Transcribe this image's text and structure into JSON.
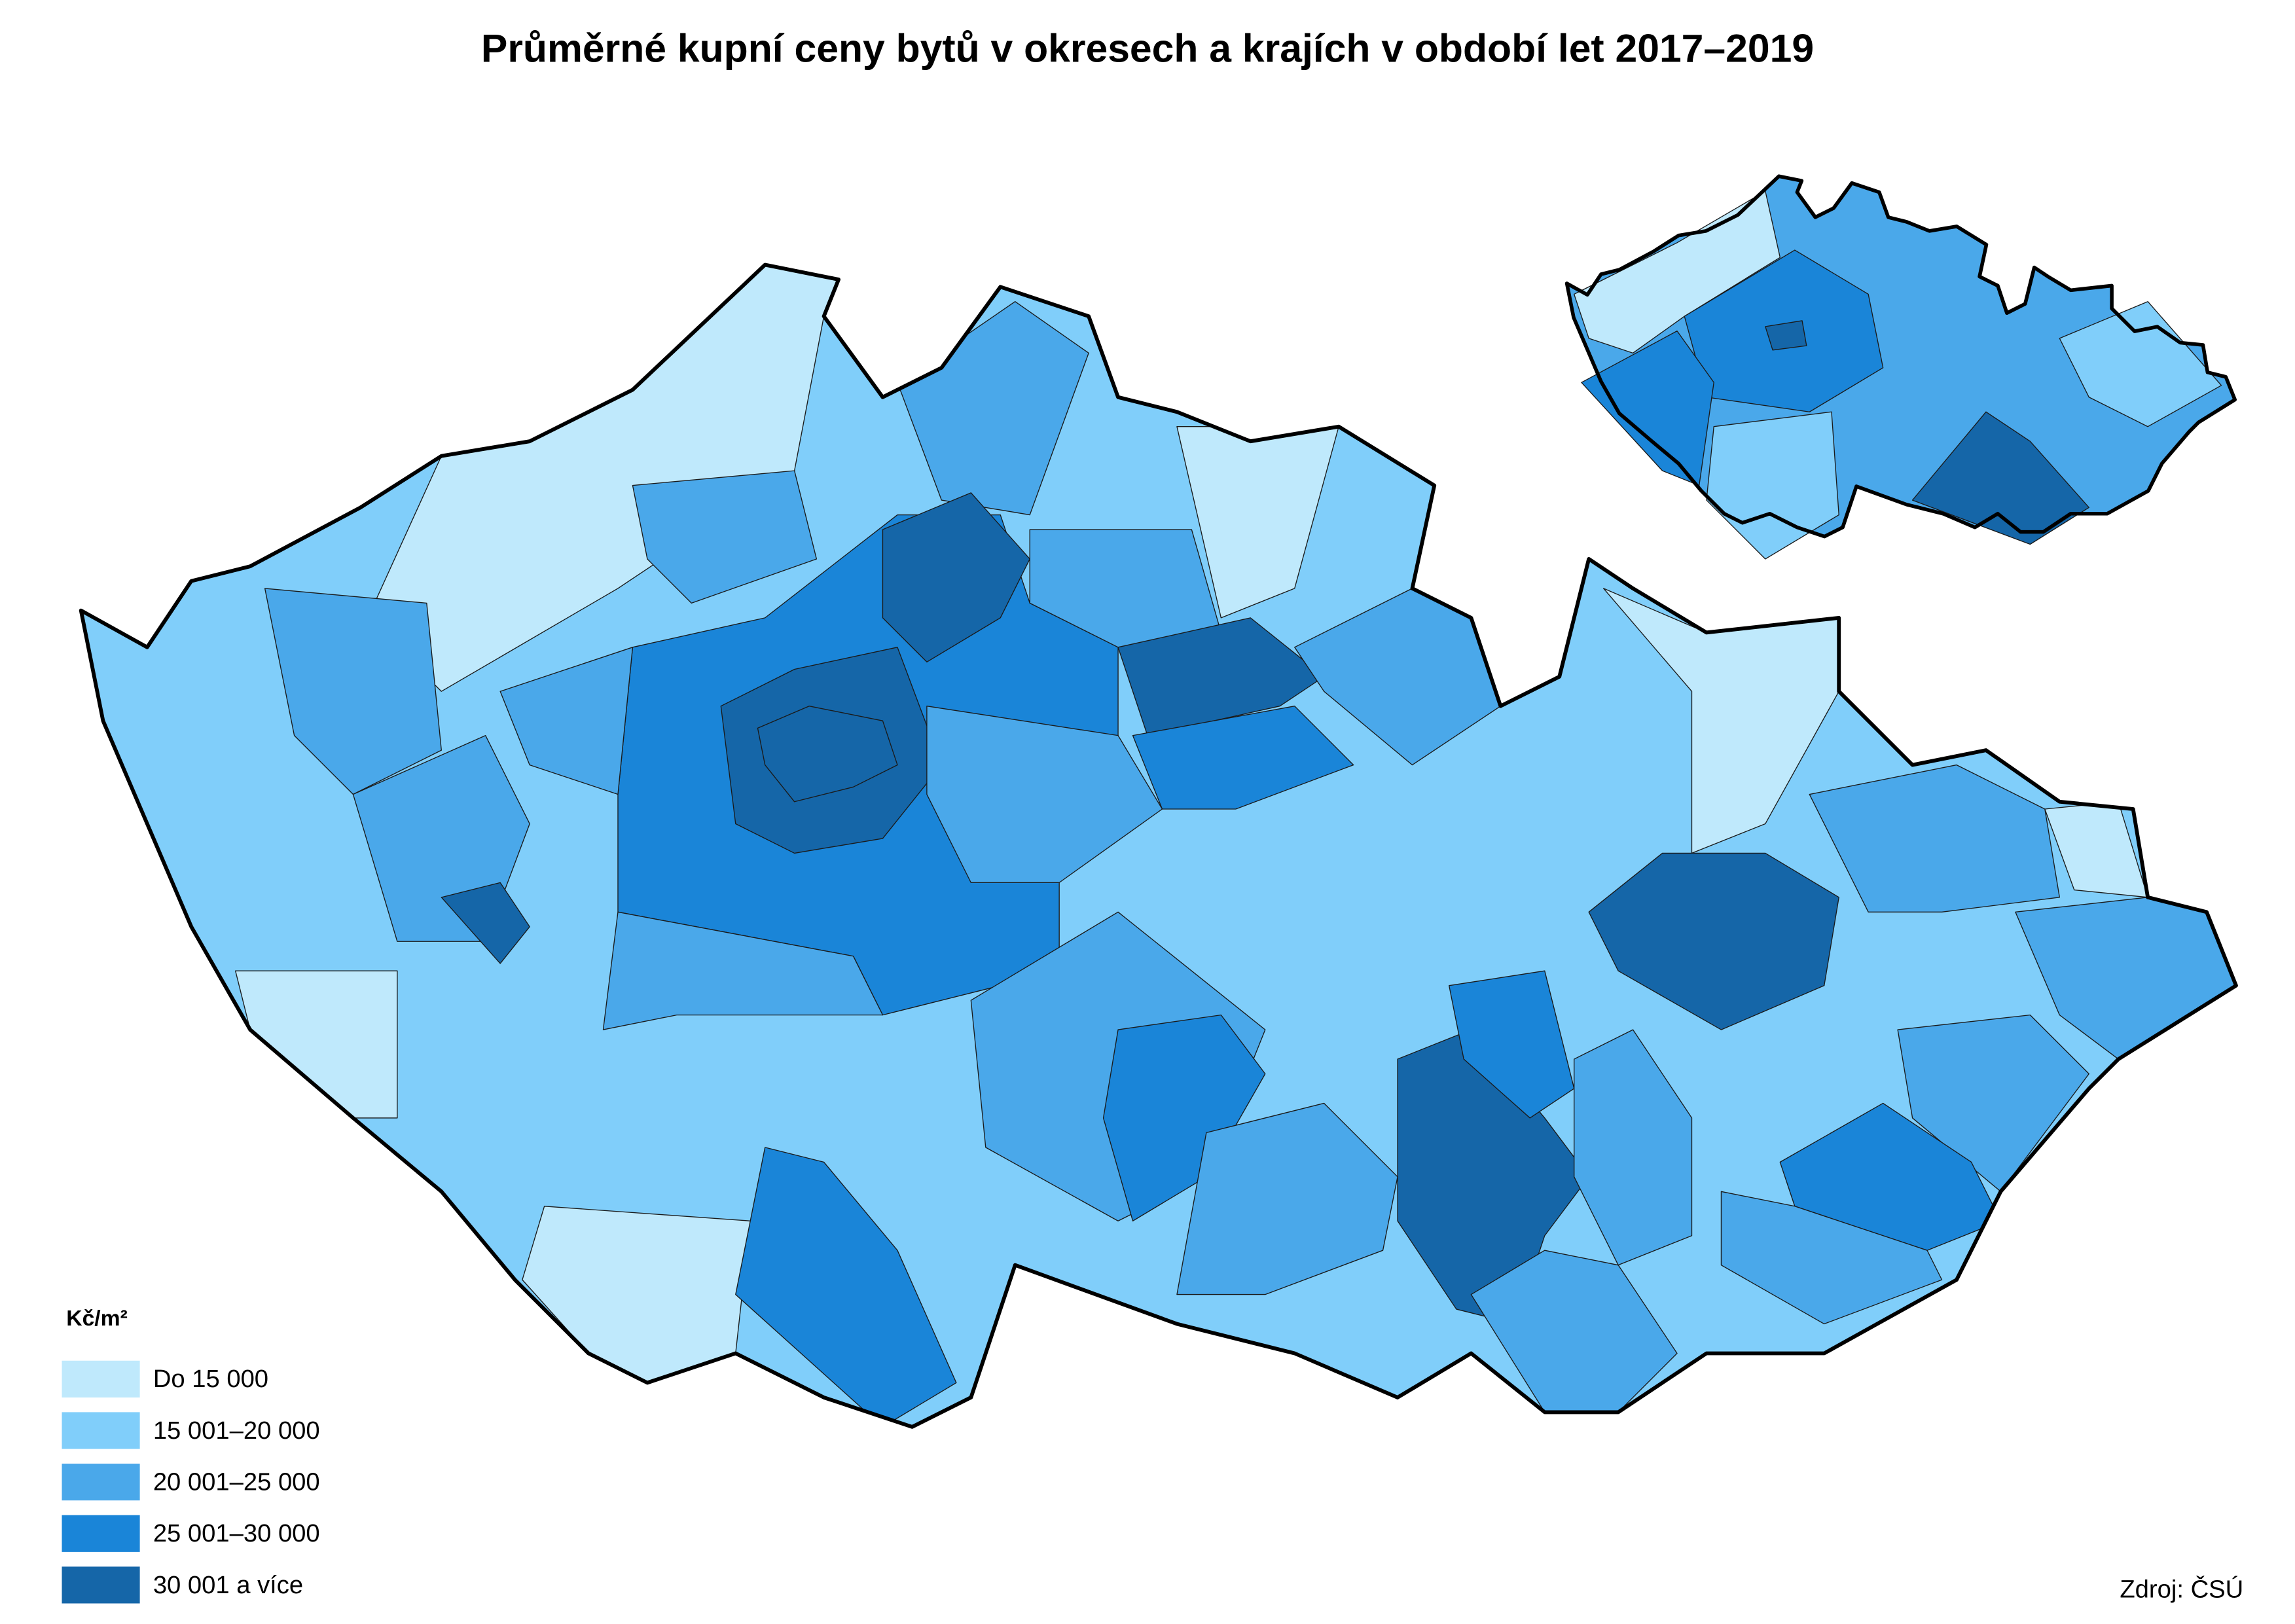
{
  "title": "Průměrné kupní ceny bytů v okresech a krajích v období let 2017–2019",
  "legend": {
    "title": "Kč/m²",
    "items": [
      {
        "label": "Do 15 000",
        "color": "#bfe9fc"
      },
      {
        "label": "15 001–20 000",
        "color": "#80cefa"
      },
      {
        "label": "20 001–25 000",
        "color": "#4aa8ea"
      },
      {
        "label": "25 001–30 000",
        "color": "#1a85d8"
      },
      {
        "label": "30 001 a více",
        "color": "#1566a8"
      }
    ]
  },
  "source": "Zdroj: ČSÚ"
}
